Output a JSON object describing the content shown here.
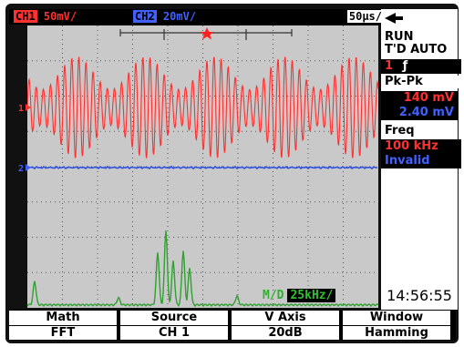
{
  "status_bar": {
    "ch1_tag": "CH1",
    "ch1_scale": "50mV/",
    "ch2_tag": "CH2",
    "ch2_scale": "20mV/",
    "timebase": "50µs/"
  },
  "right_panel": {
    "run_state": "RUN",
    "trigger_mode": "T'D AUTO",
    "trigger_source": "1",
    "trigger_slope_glyph": "ƒ",
    "meas_label": "Pk-Pk",
    "ch1_pkpk": "140 mV",
    "ch2_pkpk": "2.40 mV",
    "freq_label": "Freq",
    "ch1_freq": "100 kHz",
    "ch2_freq": "Invalid",
    "clock": "14:56:55"
  },
  "waveform_markers": {
    "ch1_marker": "1",
    "ch2_marker": "2"
  },
  "math": {
    "label": "M/D",
    "scale": "25kHz/"
  },
  "softkeys": [
    {
      "top": "Math",
      "bottom": "FFT"
    },
    {
      "top": "Source",
      "bottom": "CH 1"
    },
    {
      "top": "V Axis",
      "bottom": "20dB"
    },
    {
      "top": "Window",
      "bottom": "Hamming"
    }
  ],
  "colors": {
    "ch1": "#ff3030",
    "ch2": "#4060ff",
    "math": "#30b030",
    "graticule_bg": "#c9c9c9"
  },
  "icons": {
    "trigger": "trigger-arrow-icon"
  }
}
